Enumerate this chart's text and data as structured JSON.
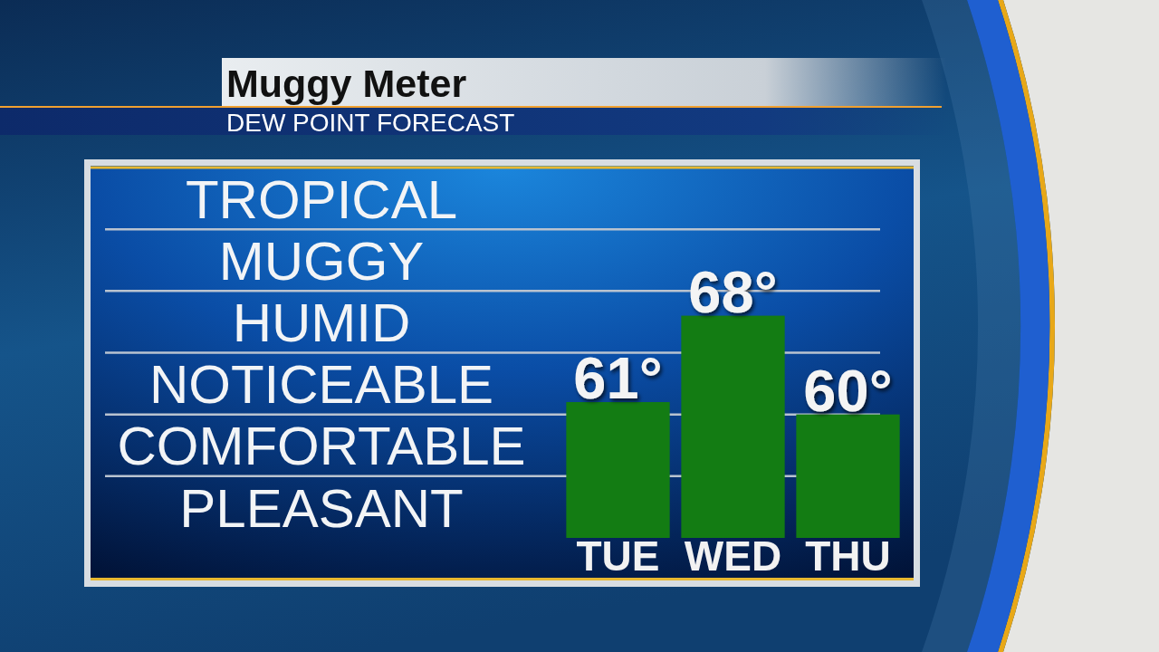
{
  "chart_data": {
    "type": "bar",
    "title": "Muggy Meter",
    "subtitle": "DEW POINT FORECAST",
    "categories": [
      "TUE",
      "WED",
      "THU"
    ],
    "values": [
      61,
      68,
      60
    ],
    "color": "#137c13",
    "value_labels": [
      "61°",
      "68°",
      "60°"
    ],
    "ylim": [
      50,
      80
    ],
    "tick_labels": "x",
    "ref_lines": [
      {
        "axis": "y",
        "value": 55
      },
      {
        "axis": "y",
        "value": 60
      },
      {
        "axis": "y",
        "value": 65
      },
      {
        "axis": "y",
        "value": 70
      },
      {
        "axis": "y",
        "value": 75
      }
    ],
    "annotations": [
      "TROPICAL",
      "MUGGY",
      "HUMID",
      "NOTICEABLE",
      "COMFORTABLE",
      "PLEASANT"
    ]
  }
}
